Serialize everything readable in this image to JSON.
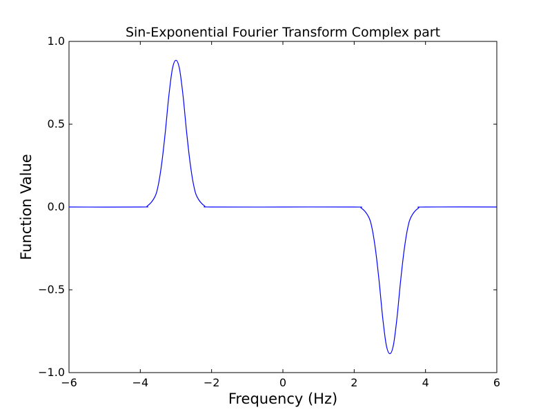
{
  "chart_data": {
    "type": "line",
    "title": "Sin-Exponential Fourier Transform Complex part",
    "xlabel": "Frequency (Hz)",
    "ylabel": "Function Value",
    "xlim": [
      -6,
      6
    ],
    "ylim": [
      -1.0,
      1.0
    ],
    "grid": false,
    "xticks": [
      -6,
      -4,
      -2,
      0,
      2,
      4,
      6
    ],
    "xtick_labels": [
      "−6",
      "−4",
      "−2",
      "0",
      "2",
      "4",
      "6"
    ],
    "yticks": [
      -1.0,
      -0.5,
      0.0,
      0.5,
      1.0
    ],
    "ytick_labels": [
      "−1.0",
      "−0.5",
      "0.0",
      "0.5",
      "1.0"
    ],
    "series": [
      {
        "color": "#0000ff",
        "x": [
          -6.0,
          -4.0,
          -3.8,
          -3.6,
          -3.5,
          -3.4,
          -3.3,
          -3.2,
          -3.1,
          -3.0,
          -2.9,
          -2.8,
          -2.7,
          -2.6,
          -2.5,
          -2.4,
          -2.2,
          -2.0,
          0.0,
          2.0,
          2.2,
          2.4,
          2.5,
          2.6,
          2.7,
          2.8,
          2.9,
          3.0,
          3.1,
          3.2,
          3.3,
          3.4,
          3.5,
          3.6,
          3.8,
          4.0,
          6.0
        ],
        "y": [
          0.0,
          0.0,
          0.007,
          0.058,
          0.128,
          0.262,
          0.45,
          0.67,
          0.834,
          0.886,
          0.834,
          0.67,
          0.45,
          0.262,
          0.128,
          0.058,
          0.007,
          0.0,
          0.0,
          0.0,
          -0.007,
          -0.058,
          -0.128,
          -0.262,
          -0.45,
          -0.67,
          -0.834,
          -0.886,
          -0.834,
          -0.67,
          -0.45,
          -0.262,
          -0.128,
          -0.058,
          -0.007,
          0.0,
          0.0
        ]
      }
    ]
  }
}
